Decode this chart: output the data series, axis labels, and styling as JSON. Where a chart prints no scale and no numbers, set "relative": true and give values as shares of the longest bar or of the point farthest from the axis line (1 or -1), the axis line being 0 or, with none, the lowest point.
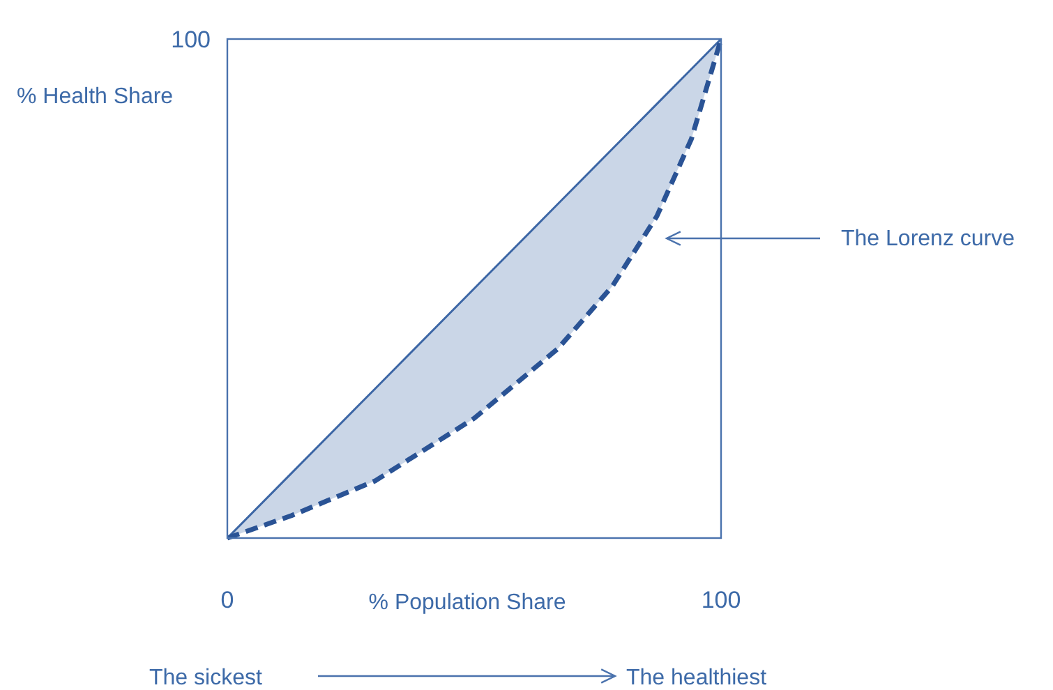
{
  "chart_data": {
    "type": "line",
    "xlabel": "% Population Share",
    "ylabel": "% Health Share",
    "x": [
      0,
      13,
      30,
      50,
      67,
      78,
      87,
      94,
      100
    ],
    "xlim": [
      0,
      100
    ],
    "xticks": [
      0,
      100
    ],
    "relative": true,
    "series": [
      {
        "color": "#3c66a5",
        "line_style": "solid",
        "values": [
          0,
          0.13,
          0.3,
          0.5,
          0.67,
          0.78,
          0.87,
          0.94,
          1
        ],
        "lower": [
          0,
          0.045,
          0.115,
          0.24,
          0.38,
          0.505,
          0.645,
          0.8,
          1
        ],
        "upper": [
          0,
          0.13,
          0.3,
          0.5,
          0.67,
          0.78,
          0.87,
          0.94,
          1
        ]
      },
      {
        "color": "#2a5395",
        "line_style": "dashed",
        "values": [
          0,
          0.045,
          0.115,
          0.24,
          0.38,
          0.505,
          0.645,
          0.8,
          1
        ]
      }
    ],
    "annotations": [
      "The Lorenz curve",
      "The sickest",
      "The healthiest",
      "100"
    ],
    "marker": "none"
  }
}
